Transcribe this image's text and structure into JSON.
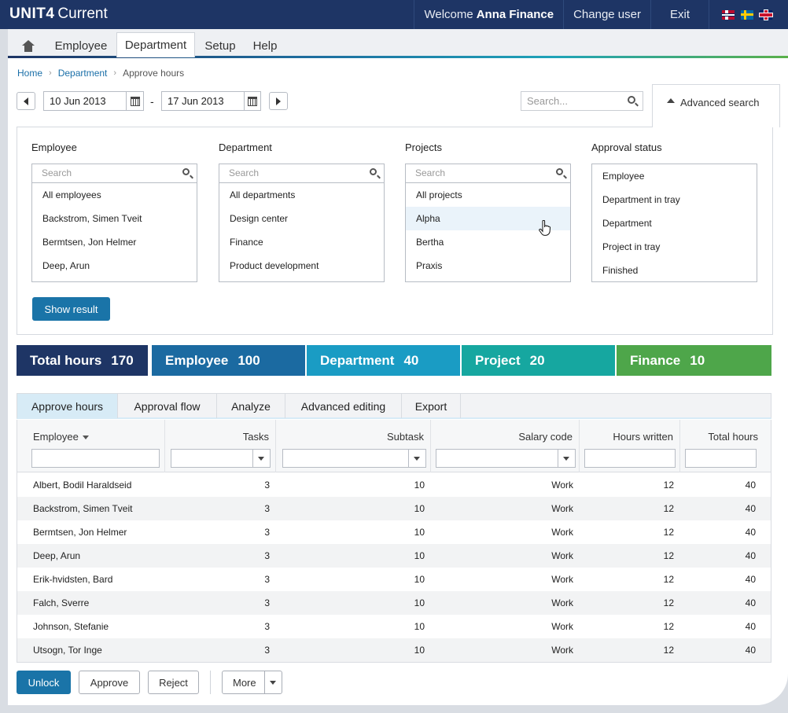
{
  "header": {
    "brand": "UNIT4",
    "product": "Current",
    "welcome_prefix": "Welcome",
    "user_name": "Anna Finance",
    "change_user": "Change user",
    "exit": "Exit",
    "flags": [
      "norway-flag-icon",
      "sweden-flag-icon",
      "uk-flag-icon"
    ]
  },
  "nav": {
    "tabs": [
      {
        "label": "Employee"
      },
      {
        "label": "Department"
      },
      {
        "label": "Setup"
      },
      {
        "label": "Help"
      }
    ],
    "active": "Department"
  },
  "breadcrumb": [
    "Home",
    "Department",
    "Approve hours"
  ],
  "date_range": {
    "from": "10 Jun 2013",
    "separator": "-",
    "to": "17 Jun 2013"
  },
  "search": {
    "placeholder": "Search..."
  },
  "advanced_search": {
    "label": "Advanced search"
  },
  "filters": {
    "employee": {
      "title": "Employee",
      "placeholder": "Search",
      "items": [
        "All employees",
        "Backstrom, Simen Tveit",
        "Bermtsen, Jon Helmer",
        "Deep, Arun"
      ]
    },
    "department": {
      "title": "Department",
      "placeholder": "Search",
      "items": [
        "All departments",
        "Design center",
        "Finance",
        "Product development"
      ]
    },
    "projects": {
      "title": "Projects",
      "placeholder": "Search",
      "items": [
        "All projects",
        "Alpha",
        "Bertha",
        "Praxis"
      ],
      "hovered": "Alpha"
    },
    "approval_status": {
      "title": "Approval status",
      "items": [
        "Employee",
        "Department in tray",
        "Department",
        "Project in tray",
        "Finished"
      ]
    },
    "show_result": "Show result"
  },
  "summary": [
    {
      "label": "Total hours",
      "value": "170",
      "color": "#1e3565"
    },
    {
      "label": "Employee",
      "value": "100",
      "color": "#1b6aa1"
    },
    {
      "label": "Department",
      "value": "40",
      "color": "#1a9cc4"
    },
    {
      "label": "Project",
      "value": "20",
      "color": "#16a7a0"
    },
    {
      "label": "Finance",
      "value": "10",
      "color": "#4ea64a"
    }
  ],
  "tabs": [
    {
      "label": "Approve hours"
    },
    {
      "label": "Approval flow"
    },
    {
      "label": "Analyze"
    },
    {
      "label": "Advanced editing"
    },
    {
      "label": "Export"
    }
  ],
  "active_tab": "Approve hours",
  "table": {
    "columns": [
      "Employee",
      "Tasks",
      "Subtask",
      "Salary code",
      "Hours written",
      "Total hours"
    ],
    "rows": [
      [
        "Albert, Bodil Haraldseid",
        "3",
        "10",
        "Work",
        "12",
        "40"
      ],
      [
        "Backstrom, Simen Tveit",
        "3",
        "10",
        "Work",
        "12",
        "40"
      ],
      [
        "Bermtsen, Jon Helmer",
        "3",
        "10",
        "Work",
        "12",
        "40"
      ],
      [
        "Deep, Arun",
        "3",
        "10",
        "Work",
        "12",
        "40"
      ],
      [
        "Erik-hvidsten, Bard",
        "3",
        "10",
        "Work",
        "12",
        "40"
      ],
      [
        "Falch, Sverre",
        "3",
        "10",
        "Work",
        "12",
        "40"
      ],
      [
        "Johnson, Stefanie",
        "3",
        "10",
        "Work",
        "12",
        "40"
      ],
      [
        "Utsogn, Tor Inge",
        "3",
        "10",
        "Work",
        "12",
        "40"
      ]
    ]
  },
  "actions": {
    "unlock": "Unlock",
    "approve": "Approve",
    "reject": "Reject",
    "more": "More"
  }
}
